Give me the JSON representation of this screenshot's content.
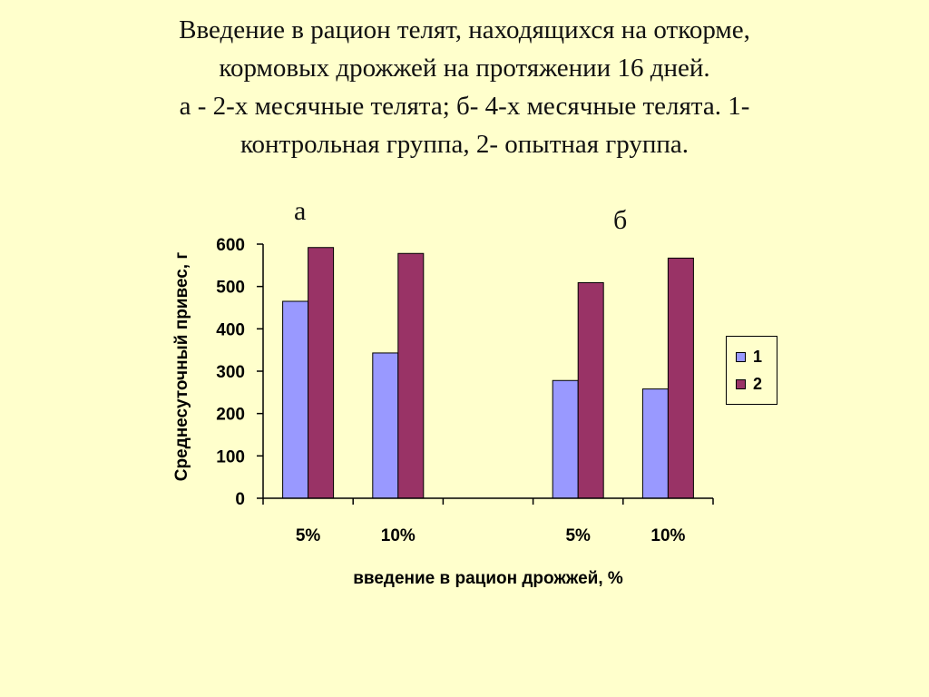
{
  "title": {
    "lines": [
      "Введение в рацион телят, находящихся на откорме,",
      "кормовых дрожжей на протяжении 16 дней.",
      "а -  2-х месячные телята; б- 4-х месячные телята. 1-",
      "контрольная группа, 2-  опытная группа."
    ]
  },
  "panels": {
    "a": "а",
    "b": "б"
  },
  "colors": {
    "series1": "#9999FF",
    "series2": "#993366",
    "background": "#FFFFCC"
  },
  "chart_data": {
    "type": "bar",
    "categories": [
      "5%",
      "10%",
      "",
      "5%",
      "10%"
    ],
    "series": [
      {
        "name": "1",
        "values": [
          465,
          343,
          null,
          278,
          258
        ]
      },
      {
        "name": "2",
        "values": [
          592,
          578,
          null,
          509,
          567
        ]
      }
    ],
    "yticks": [
      "0",
      "100",
      "200",
      "300",
      "400",
      "500",
      "600"
    ],
    "ylim": [
      0,
      600
    ],
    "xlabel": "введение в рацион дрожжей, %",
    "ylabel": "Среднесуточный привес, г",
    "legend": "right",
    "grid": false
  }
}
